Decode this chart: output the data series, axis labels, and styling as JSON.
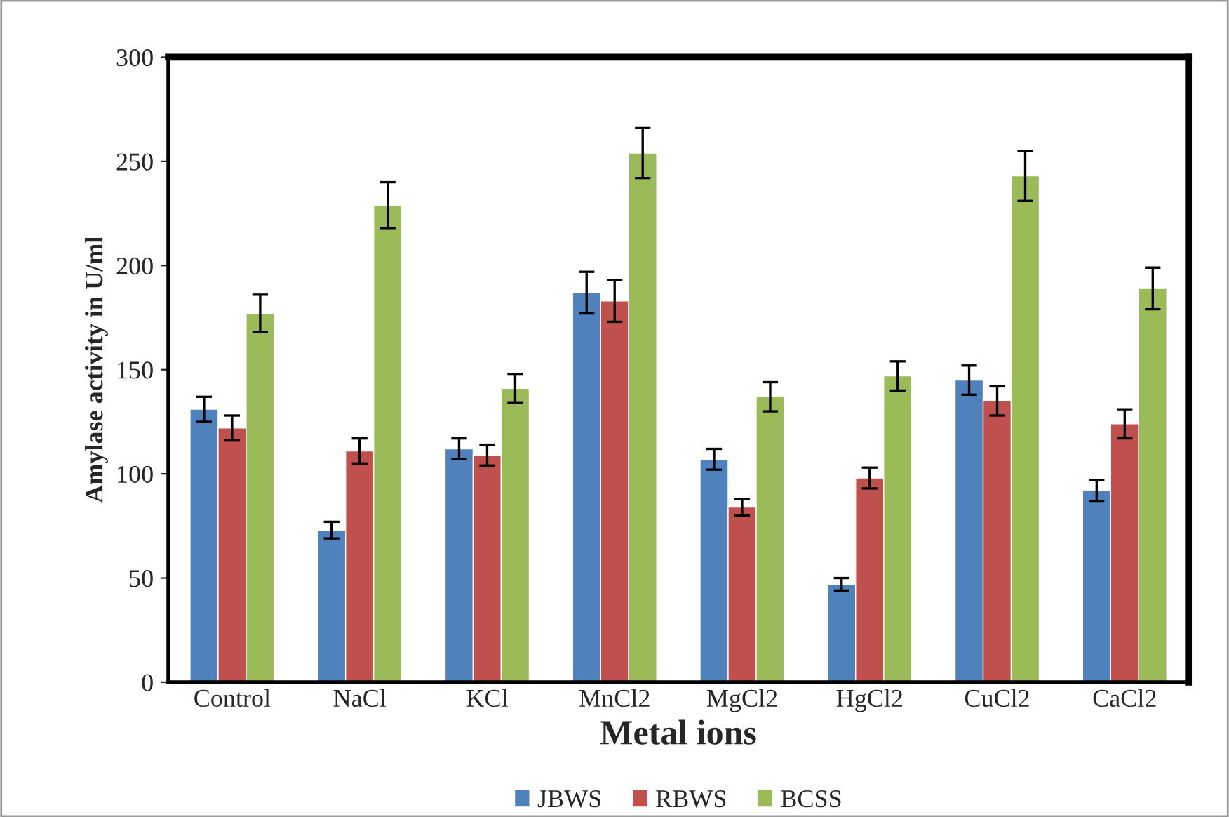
{
  "chart_data": {
    "type": "bar",
    "xlabel": "Metal ions",
    "ylabel": "Amylase activity in U/ml",
    "categories": [
      "Control",
      "NaCl",
      "KCl",
      "MnCl2",
      "MgCl2",
      "HgCl2",
      "CuCl2",
      "CaCl2"
    ],
    "series": [
      {
        "name": "JBWS",
        "color": "#4f81bd",
        "values": [
          131,
          73,
          112,
          187,
          107,
          47,
          145,
          92
        ],
        "errors": [
          6,
          4,
          5,
          10,
          5,
          3,
          7,
          5
        ]
      },
      {
        "name": "RBWS",
        "color": "#c0504d",
        "values": [
          122,
          111,
          109,
          183,
          84,
          98,
          135,
          124
        ],
        "errors": [
          6,
          6,
          5,
          10,
          4,
          5,
          7,
          7
        ]
      },
      {
        "name": "BCSS",
        "color": "#9bbb59",
        "values": [
          177,
          229,
          141,
          254,
          137,
          147,
          243,
          189
        ],
        "errors": [
          9,
          11,
          7,
          12,
          7,
          7,
          12,
          10
        ]
      }
    ],
    "ylim": [
      0,
      300
    ],
    "yticks": [
      0,
      50,
      100,
      150,
      200,
      250,
      300
    ],
    "grid": false,
    "legend": "bottom"
  }
}
